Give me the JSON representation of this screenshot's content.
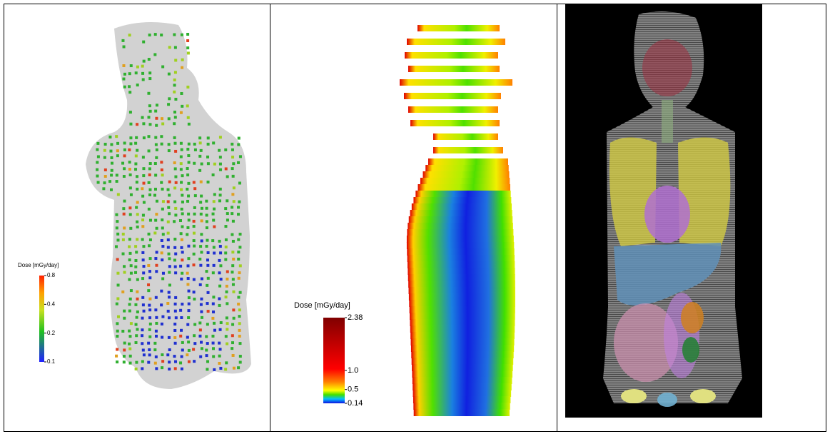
{
  "panels": [
    {
      "colorbar": {
        "title": "Dose [mGy/day]",
        "scale": "log",
        "lim": [
          0.1,
          0.8
        ],
        "ticks": [
          0.8,
          0.4,
          0.2,
          0.1
        ]
      }
    },
    {
      "colorbar": {
        "title": "Dose [mGy/day]",
        "scale": "linear",
        "lim": [
          0.14,
          2.38
        ],
        "ticks": [
          2.38,
          {
            "value": 1,
            "label": "1.0"
          },
          0.5,
          0.14
        ]
      }
    }
  ]
}
